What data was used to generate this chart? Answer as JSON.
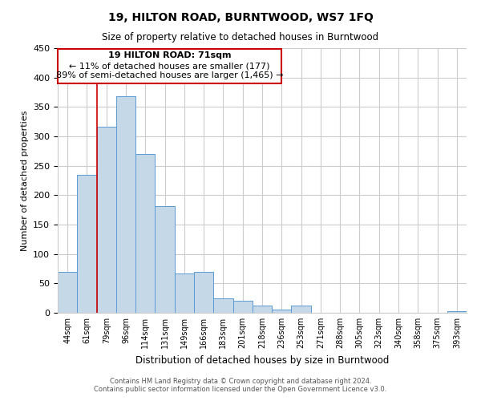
{
  "title": "19, HILTON ROAD, BURNTWOOD, WS7 1FQ",
  "subtitle": "Size of property relative to detached houses in Burntwood",
  "xlabel": "Distribution of detached houses by size in Burntwood",
  "ylabel": "Number of detached properties",
  "categories": [
    "44sqm",
    "61sqm",
    "79sqm",
    "96sqm",
    "114sqm",
    "131sqm",
    "149sqm",
    "166sqm",
    "183sqm",
    "201sqm",
    "218sqm",
    "236sqm",
    "253sqm",
    "271sqm",
    "288sqm",
    "305sqm",
    "323sqm",
    "340sqm",
    "358sqm",
    "375sqm",
    "393sqm"
  ],
  "values": [
    70,
    235,
    317,
    368,
    270,
    182,
    67,
    70,
    24,
    20,
    12,
    5,
    12,
    0,
    0,
    0,
    0,
    0,
    0,
    0,
    3
  ],
  "bar_color": "#c5d8e8",
  "bar_edge_color": "#5b9bd5",
  "bar_edge_width": 0.7,
  "vline_color": "#cc0000",
  "annotation_title": "19 HILTON ROAD: 71sqm",
  "annotation_line1": "← 11% of detached houses are smaller (177)",
  "annotation_line2": "89% of semi-detached houses are larger (1,465) →",
  "annotation_box_edge_color": "#cc0000",
  "annotation_box_facecolor": "#ffffff",
  "ylim": [
    0,
    450
  ],
  "yticks": [
    0,
    50,
    100,
    150,
    200,
    250,
    300,
    350,
    400,
    450
  ],
  "footer_line1": "Contains HM Land Registry data © Crown copyright and database right 2024.",
  "footer_line2": "Contains public sector information licensed under the Open Government Licence v3.0.",
  "background_color": "#ffffff",
  "grid_color": "#cccccc"
}
